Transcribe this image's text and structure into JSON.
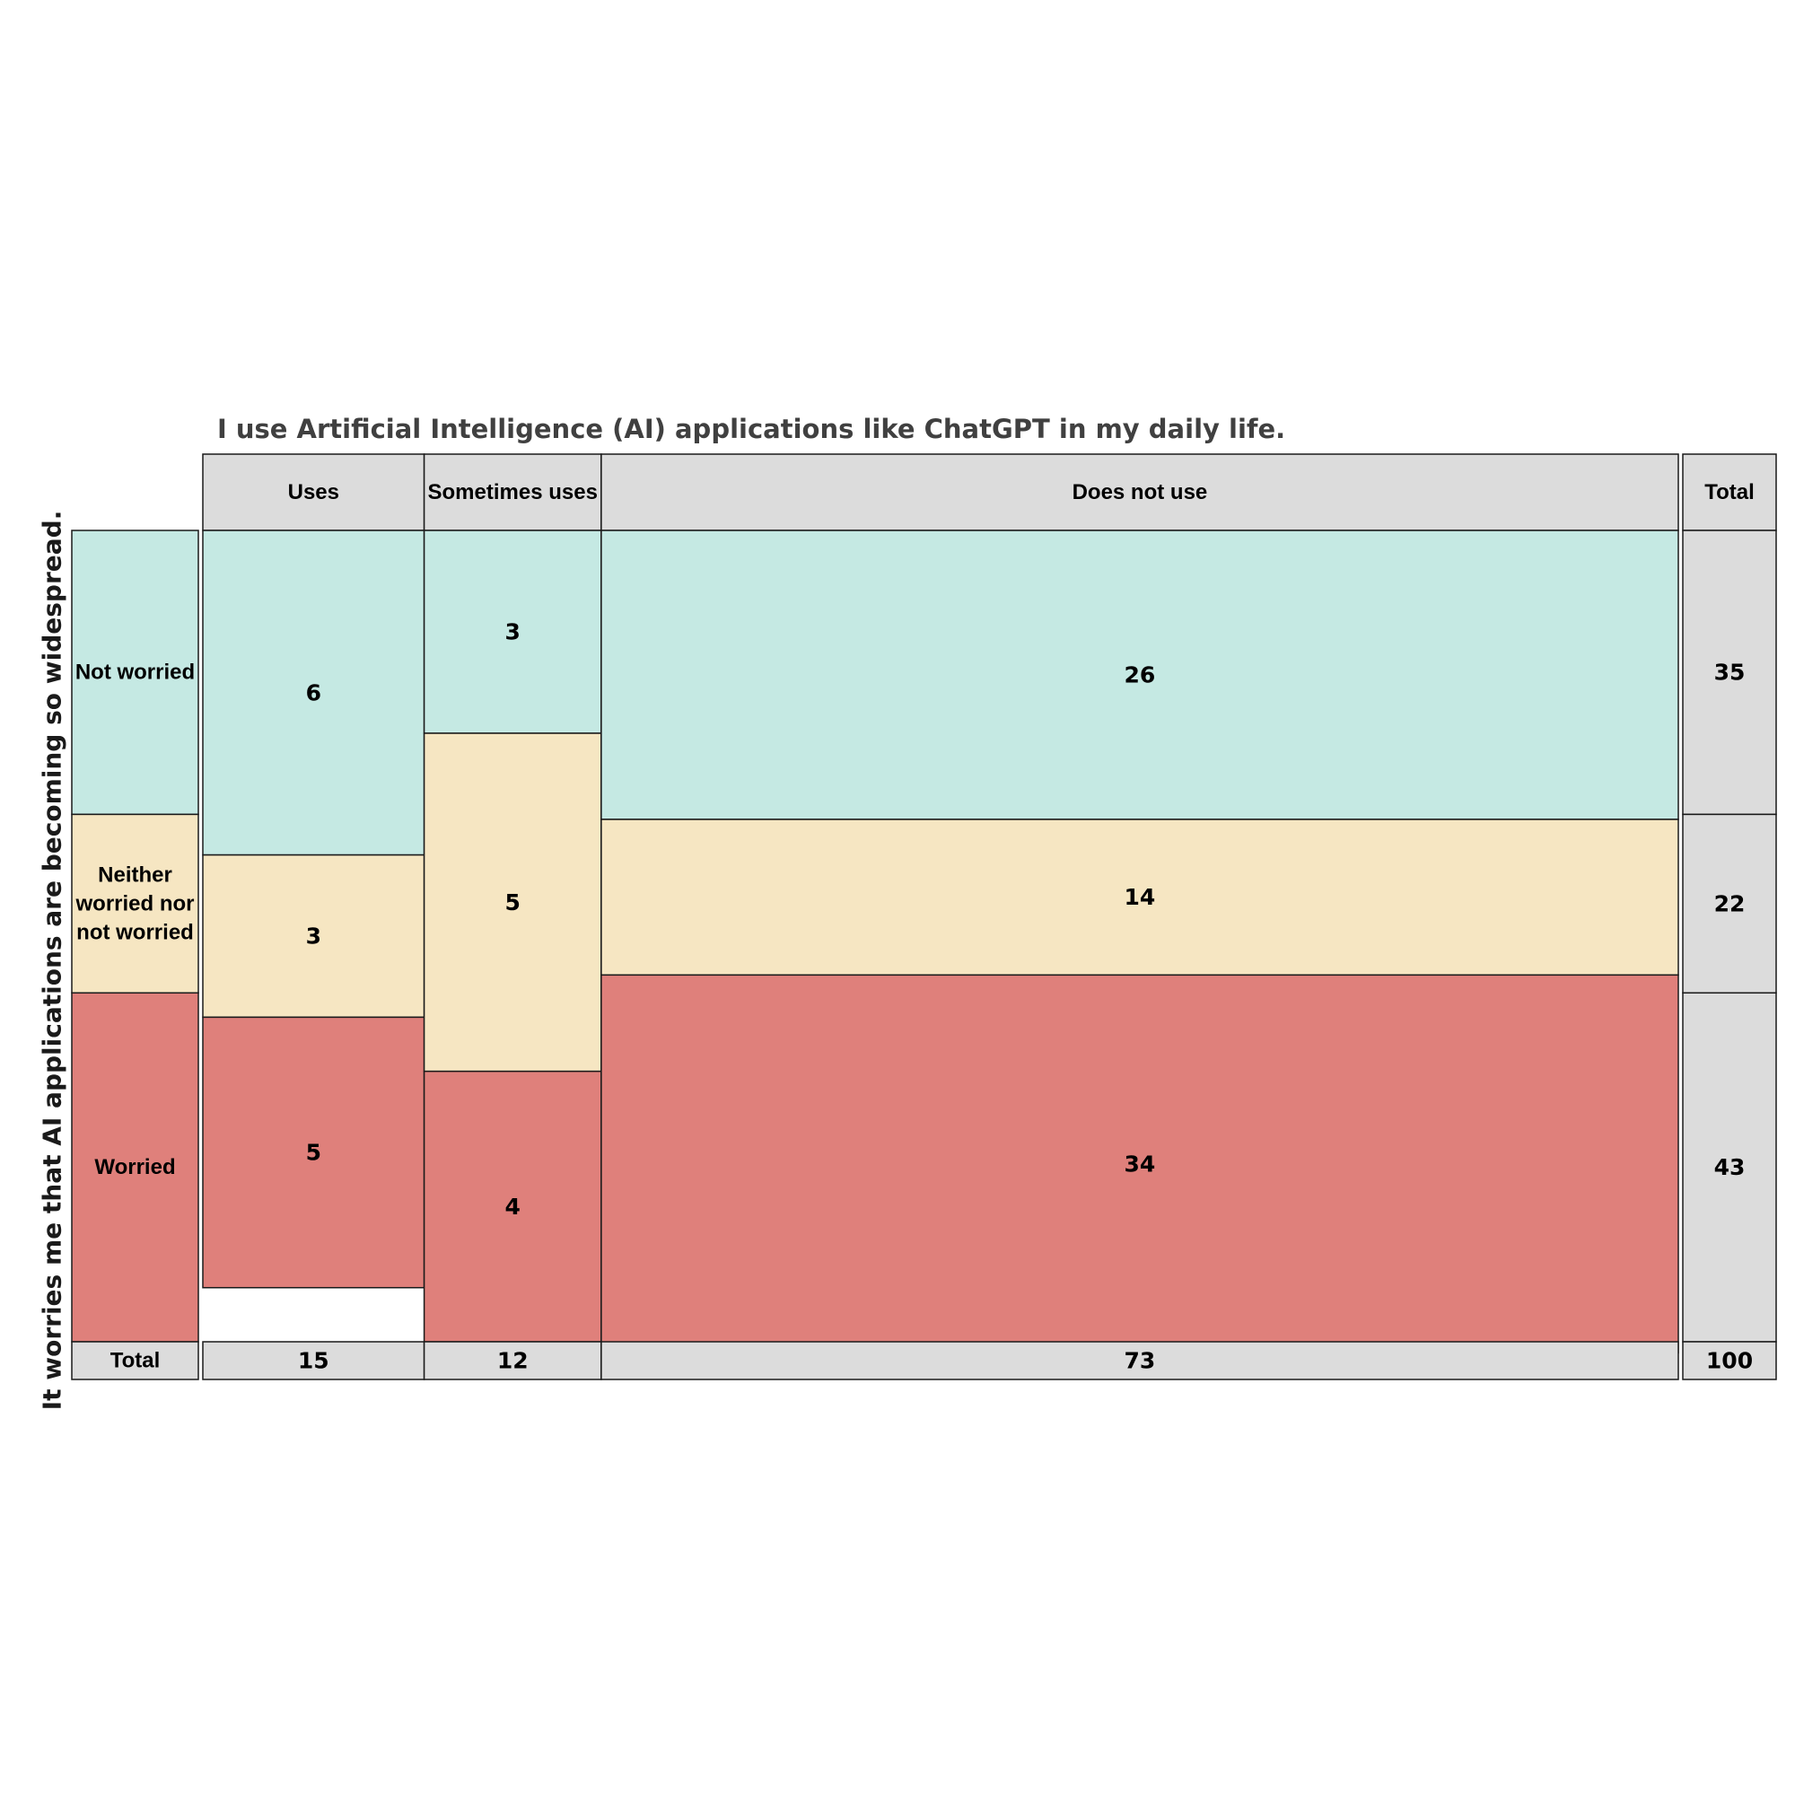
{
  "chart_data": {
    "type": "mosaic",
    "title": "I use Artificial Intelligence (AI) applications like ChatGPT in my daily life.",
    "ylabel": "It worries me that AI applications are becoming so widespread.",
    "total_label": "Total",
    "categories": [
      "Uses",
      "Sometimes uses",
      "Does not use"
    ],
    "series": [
      {
        "name": "Not worried",
        "color": "#c5e9e3",
        "values": [
          6,
          3,
          26
        ]
      },
      {
        "name": "Neither worried nor not worried",
        "color": "#f6e6c2",
        "values": [
          3,
          5,
          14
        ]
      },
      {
        "name": "Worried",
        "color": "#df807b",
        "values": [
          5,
          4,
          34
        ]
      }
    ],
    "row_totals": [
      35,
      22,
      43
    ],
    "column_totals": [
      15,
      12,
      73
    ],
    "grand_total": 100,
    "header_color": "#dcdcdc",
    "border_color": "#1a1a1a"
  }
}
